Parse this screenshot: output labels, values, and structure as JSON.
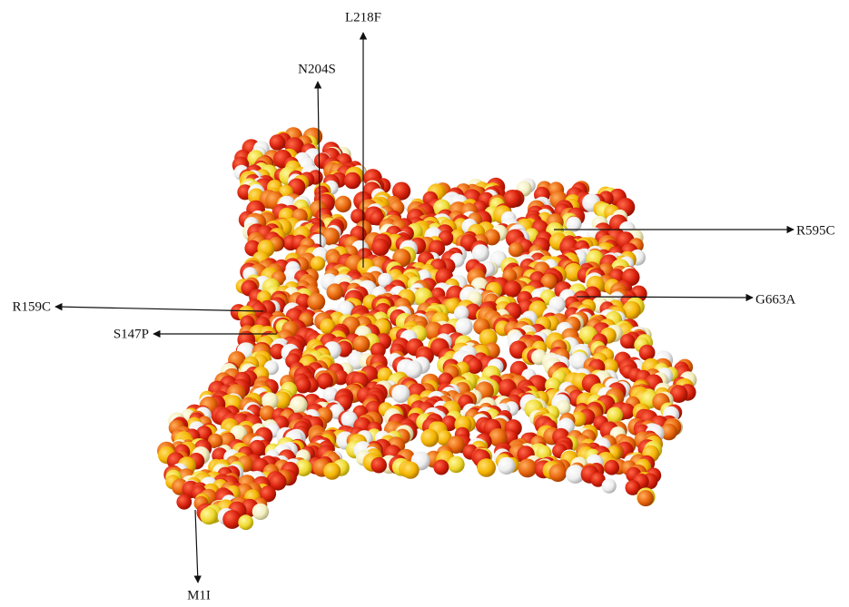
{
  "mutations": [
    {
      "label": "L218F"
    },
    {
      "label": "N204S"
    },
    {
      "label": "R595C"
    },
    {
      "label": "G663A"
    },
    {
      "label": "R159C"
    },
    {
      "label": "S147P"
    },
    {
      "label": "M1I"
    }
  ]
}
